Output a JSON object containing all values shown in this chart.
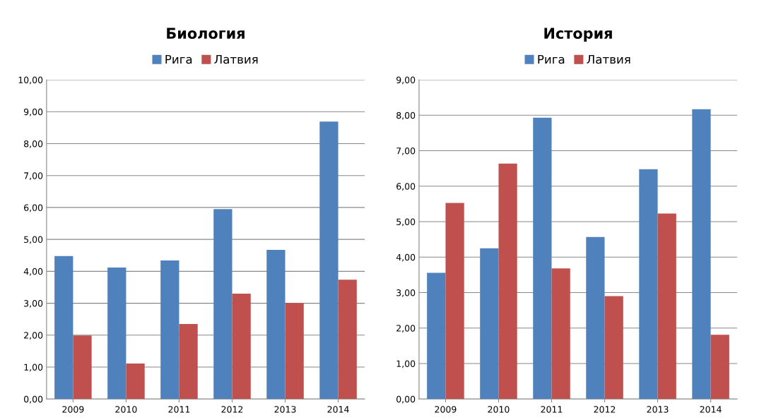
{
  "chart_data": [
    {
      "type": "bar",
      "title": "Биология",
      "categories": [
        "2009",
        "2010",
        "2011",
        "2012",
        "2013",
        "2014"
      ],
      "series": [
        {
          "name": "Рига",
          "color": "#4f81bd",
          "values": [
            4.48,
            4.12,
            4.34,
            5.95,
            4.67,
            8.69
          ]
        },
        {
          "name": "Латвия",
          "color": "#c0504d",
          "values": [
            1.99,
            1.11,
            2.35,
            3.3,
            3.01,
            3.74
          ]
        }
      ],
      "ylim": [
        0,
        10
      ],
      "yticks": [
        {
          "value": 0,
          "label": "0,00"
        },
        {
          "value": 1,
          "label": "1,00"
        },
        {
          "value": 2,
          "label": "2,00"
        },
        {
          "value": 3,
          "label": "3,00"
        },
        {
          "value": 4,
          "label": "4,00"
        },
        {
          "value": 5,
          "label": "5,00"
        },
        {
          "value": 6,
          "label": "6,00"
        },
        {
          "value": 7,
          "label": "7,00"
        },
        {
          "value": 8,
          "label": "8,00"
        },
        {
          "value": 9,
          "label": "9,00"
        },
        {
          "value": 10,
          "label": "10,00"
        }
      ],
      "grid": "y",
      "legend": "top"
    },
    {
      "type": "bar",
      "title": "История",
      "categories": [
        "2009",
        "2010",
        "2011",
        "2012",
        "2013",
        "2014"
      ],
      "series": [
        {
          "name": "Рига",
          "color": "#4f81bd",
          "values": [
            3.56,
            4.25,
            7.93,
            4.57,
            6.48,
            8.17
          ]
        },
        {
          "name": "Латвия",
          "color": "#c0504d",
          "values": [
            5.53,
            6.64,
            3.68,
            2.9,
            5.23,
            1.81
          ]
        }
      ],
      "ylim": [
        0,
        9
      ],
      "yticks": [
        {
          "value": 0,
          "label": "0,00"
        },
        {
          "value": 1,
          "label": "1,00"
        },
        {
          "value": 2,
          "label": "2,00"
        },
        {
          "value": 3,
          "label": "3,00"
        },
        {
          "value": 4,
          "label": "4,00"
        },
        {
          "value": 5,
          "label": "5,00"
        },
        {
          "value": 6,
          "label": "6,00"
        },
        {
          "value": 7,
          "label": "7,00"
        },
        {
          "value": 8,
          "label": "8,00"
        },
        {
          "value": 9,
          "label": "9,00"
        }
      ],
      "grid": "y",
      "legend": "top"
    }
  ]
}
